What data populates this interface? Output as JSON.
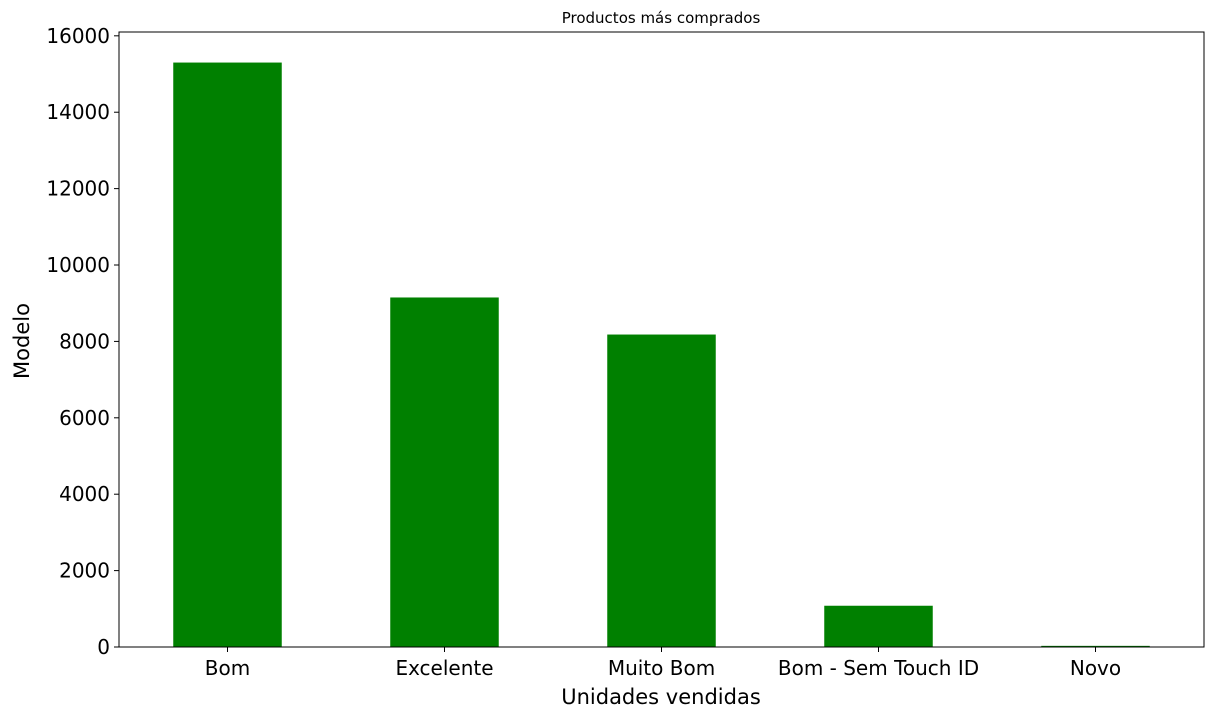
{
  "chart_data": {
    "type": "bar",
    "title": "Productos más comprados",
    "xlabel": "Unidades vendidas",
    "ylabel": "Modelo",
    "categories": [
      "Bom",
      "Excelente",
      "Muito Bom",
      "Bom - Sem Touch ID",
      "Novo"
    ],
    "values": [
      15300,
      9150,
      8180,
      1080,
      30
    ],
    "ylim": [
      0,
      16100
    ],
    "yticks": [
      0,
      2000,
      4000,
      6000,
      8000,
      10000,
      12000,
      14000,
      16000
    ],
    "ytick_labels": [
      "0",
      "2000",
      "4000",
      "6000",
      "8000",
      "10000",
      "12000",
      "14000",
      "16000"
    ],
    "bar_color": "#008000",
    "grid": false,
    "legend": "none"
  }
}
